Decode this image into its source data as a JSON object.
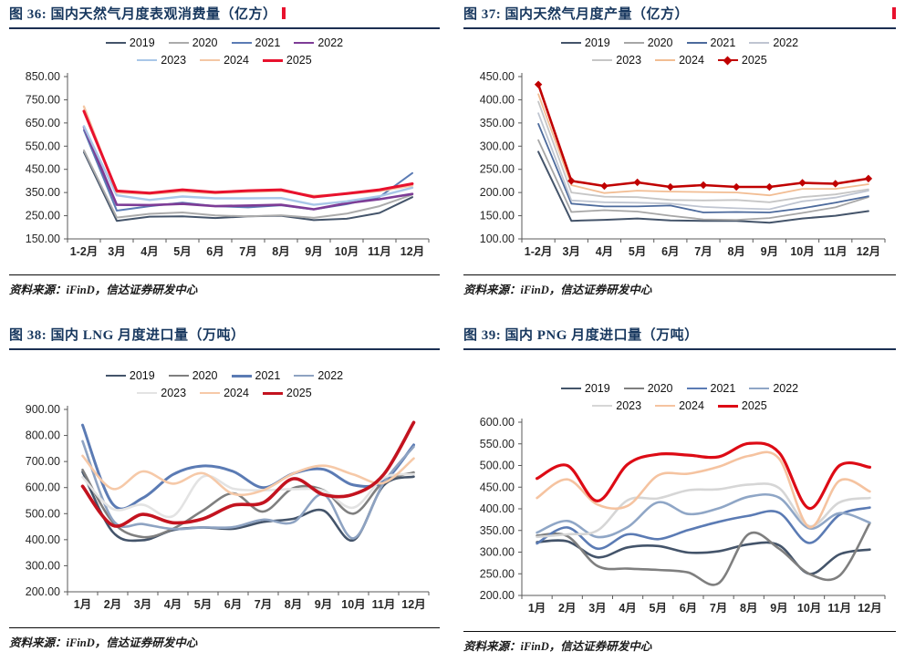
{
  "chart_data": [
    {
      "type": "line",
      "figure_label": "图 36",
      "title": "图 36: 国内天然气月度表观消费量（亿方）",
      "unit": "亿方",
      "source": "资料来源：iFinD，信达证券研发中心",
      "categories": [
        "1-2月",
        "3月",
        "4月",
        "5月",
        "6月",
        "7月",
        "8月",
        "9月",
        "10月",
        "11月",
        "12月"
      ],
      "ylim": [
        150,
        850
      ],
      "ystep": 100,
      "grid": false,
      "smooth": false,
      "legend_position": "top",
      "series": [
        {
          "name": "2019",
          "color": "#44546a",
          "width": 2,
          "values": [
            524,
            228,
            246,
            247,
            240,
            247,
            250,
            231,
            237,
            262,
            330
          ]
        },
        {
          "name": "2020",
          "color": "#ababab",
          "width": 2,
          "values": [
            532,
            242,
            258,
            264,
            251,
            247,
            252,
            241,
            259,
            291,
            341
          ]
        },
        {
          "name": "2021",
          "color": "#5b7bb4",
          "width": 2,
          "values": [
            619,
            272,
            291,
            306,
            291,
            286,
            295,
            277,
            300,
            331,
            434
          ]
        },
        {
          "name": "2022",
          "color": "#7d3c96",
          "width": 2.6,
          "values": [
            633,
            297,
            296,
            301,
            291,
            294,
            297,
            278,
            304,
            321,
            344
          ]
        },
        {
          "name": "2023",
          "color": "#a9c7e8",
          "width": 2.4,
          "values": [
            636,
            338,
            318,
            333,
            325,
            325,
            326,
            297,
            312,
            334,
            371
          ]
        },
        {
          "name": "2024",
          "color": "#f4c7a5",
          "width": 2.4,
          "values": [
            721,
            350,
            344,
            354,
            347,
            353,
            357,
            336,
            344,
            356,
            380
          ]
        },
        {
          "name": "2025",
          "color": "#e8112d",
          "width": 3,
          "values": [
            701,
            357,
            348,
            362,
            351,
            358,
            362,
            331,
            346,
            362,
            388
          ]
        }
      ]
    },
    {
      "type": "line",
      "figure_label": "图 37",
      "title": "图 37: 国内天然气月度产量（亿方）",
      "unit": "亿方",
      "source": "资料来源：iFinD，信达证券研发中心",
      "categories": [
        "1-2月",
        "3月",
        "4月",
        "5月",
        "6月",
        "7月",
        "8月",
        "9月",
        "10月",
        "11月",
        "12月"
      ],
      "ylim": [
        100,
        450
      ],
      "ystep": 50,
      "grid": false,
      "smooth": false,
      "legend_position": "top",
      "series": [
        {
          "name": "2019",
          "color": "#44546a",
          "width": 2,
          "values": [
            288,
            139,
            141,
            144,
            140,
            139,
            139,
            135,
            144,
            150,
            160
          ]
        },
        {
          "name": "2020",
          "color": "#a6a6a6",
          "width": 1.8,
          "values": [
            313,
            158,
            162,
            159,
            150,
            142,
            141,
            145,
            156,
            168,
            190
          ]
        },
        {
          "name": "2021",
          "color": "#4c6a9c",
          "width": 1.8,
          "values": [
            348,
            176,
            170,
            170,
            172,
            157,
            158,
            157,
            166,
            178,
            192
          ]
        },
        {
          "name": "2022",
          "color": "#bfc5d1",
          "width": 1.8,
          "values": [
            371,
            183,
            179,
            178,
            176,
            169,
            166,
            164,
            181,
            189,
            204
          ]
        },
        {
          "name": "2023",
          "color": "#c6c6c6",
          "width": 1.8,
          "values": [
            396,
            200,
            191,
            190,
            184,
            183,
            184,
            179,
            190,
            196,
            207
          ]
        },
        {
          "name": "2024",
          "color": "#f2bd93",
          "width": 1.8,
          "values": [
            412,
            216,
            199,
            204,
            202,
            201,
            200,
            194,
            208,
            208,
            218
          ]
        },
        {
          "name": "2025",
          "color": "#c00000",
          "width": 2.6,
          "marker": "diamond",
          "values": [
            433,
            225,
            214,
            222,
            212,
            216,
            212,
            212,
            221,
            219,
            230
          ]
        }
      ]
    },
    {
      "type": "line",
      "figure_label": "图 38",
      "title": "图 38: 国内 LNG 月度进口量（万吨）",
      "unit": "万吨",
      "source": "资料来源：iFinD，信达证券研发中心",
      "categories": [
        "1月",
        "2月",
        "3月",
        "4月",
        "5月",
        "6月",
        "7月",
        "8月",
        "9月",
        "10月",
        "11月",
        "12月"
      ],
      "ylim": [
        200,
        900
      ],
      "ystep": 100,
      "grid": false,
      "smooth": true,
      "legend_position": "top",
      "series": [
        {
          "name": "2019",
          "color": "#44546a",
          "width": 2.6,
          "values": [
            660,
            430,
            398,
            437,
            447,
            442,
            468,
            480,
            512,
            398,
            608,
            642
          ]
        },
        {
          "name": "2020",
          "color": "#7f7f7f",
          "width": 2.6,
          "values": [
            668,
            468,
            410,
            442,
            512,
            578,
            508,
            598,
            590,
            500,
            622,
            658
          ]
        },
        {
          "name": "2021",
          "color": "#5b7bb4",
          "width": 3,
          "values": [
            840,
            537,
            560,
            650,
            683,
            662,
            600,
            654,
            670,
            610,
            624,
            764
          ]
        },
        {
          "name": "2022",
          "color": "#8ea3c2",
          "width": 2.6,
          "values": [
            778,
            476,
            460,
            441,
            447,
            448,
            477,
            467,
            574,
            405,
            618,
            757
          ]
        },
        {
          "name": "2023",
          "color": "#e3e3e3",
          "width": 2.6,
          "values": [
            640,
            518,
            534,
            490,
            642,
            596,
            590,
            594,
            588,
            523,
            637,
            651
          ]
        },
        {
          "name": "2024",
          "color": "#f6c9a8",
          "width": 2.6,
          "values": [
            722,
            595,
            662,
            615,
            655,
            576,
            590,
            654,
            684,
            650,
            618,
            712
          ]
        },
        {
          "name": "2025",
          "color": "#c3131f",
          "width": 3.6,
          "values": [
            605,
            455,
            497,
            465,
            480,
            532,
            542,
            634,
            573,
            574,
            650,
            850
          ]
        }
      ]
    },
    {
      "type": "line",
      "figure_label": "图 39",
      "title": "图 39: 国内 PNG 月度进口量（万吨）",
      "unit": "万吨",
      "source": "资料来源：iFinD，信达证券研发中心",
      "categories": [
        "1月",
        "2月",
        "3月",
        "4月",
        "5月",
        "6月",
        "7月",
        "8月",
        "9月",
        "10月",
        "11月",
        "12月"
      ],
      "ylim": [
        200,
        600
      ],
      "ystep": 50,
      "grid": false,
      "smooth": true,
      "legend_position": "top",
      "series": [
        {
          "name": "2019",
          "color": "#44546a",
          "width": 2.6,
          "values": [
            323,
            325,
            288,
            311,
            314,
            299,
            302,
            318,
            316,
            250,
            295,
            306
          ]
        },
        {
          "name": "2020",
          "color": "#7f7f7f",
          "width": 2.6,
          "values": [
            338,
            337,
            268,
            262,
            259,
            253,
            228,
            342,
            308,
            250,
            246,
            367
          ]
        },
        {
          "name": "2021",
          "color": "#5b7bb4",
          "width": 2.6,
          "values": [
            320,
            357,
            308,
            341,
            330,
            351,
            370,
            384,
            391,
            321,
            386,
            403
          ]
        },
        {
          "name": "2022",
          "color": "#8fa6c6",
          "width": 2.6,
          "values": [
            345,
            372,
            335,
            358,
            415,
            388,
            401,
            428,
            426,
            355,
            390,
            368
          ]
        },
        {
          "name": "2023",
          "color": "#d6d6d6",
          "width": 2.6,
          "values": [
            335,
            341,
            350,
            420,
            424,
            443,
            445,
            456,
            448,
            360,
            415,
            425
          ]
        },
        {
          "name": "2024",
          "color": "#f5c3a0",
          "width": 2.6,
          "values": [
            425,
            468,
            410,
            407,
            477,
            481,
            497,
            522,
            516,
            358,
            465,
            440
          ]
        },
        {
          "name": "2025",
          "color": "#dd0b15",
          "width": 3.2,
          "values": [
            470,
            500,
            418,
            503,
            526,
            524,
            520,
            551,
            530,
            401,
            500,
            496
          ]
        }
      ]
    }
  ],
  "style": {
    "title_color": "#17375e",
    "title_mark_color": "#e8112d",
    "axis_color": "#595959",
    "tick_label_color": "#262626"
  }
}
